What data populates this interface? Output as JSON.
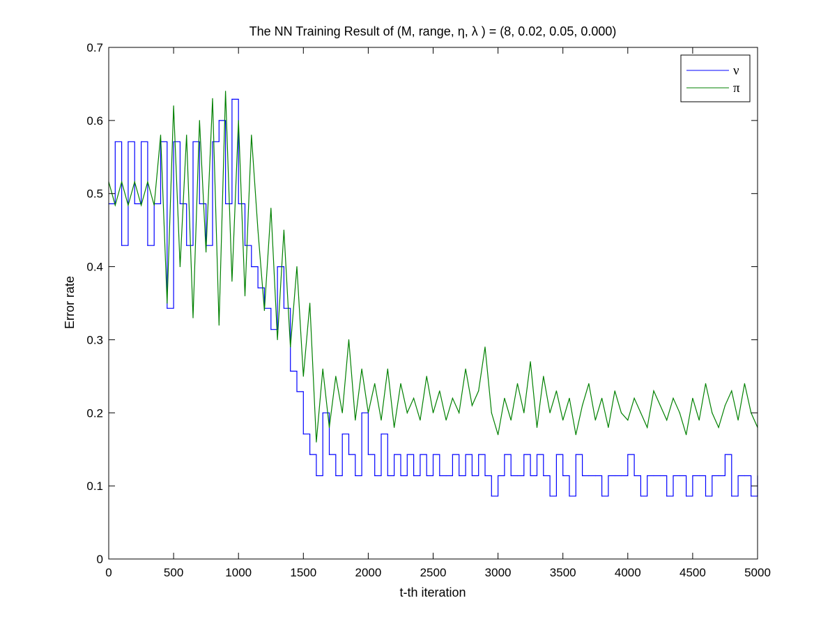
{
  "chart_data": {
    "type": "line",
    "title": "The NN Training Result of (M, range, η, λ ) = (8, 0.02, 0.05, 0.000)",
    "xlabel": "t-th iteration",
    "ylabel": "Error rate",
    "xlim": [
      0,
      5000
    ],
    "ylim": [
      0,
      0.7
    ],
    "xticks": [
      0,
      500,
      1000,
      1500,
      2000,
      2500,
      3000,
      3500,
      4000,
      4500,
      5000
    ],
    "yticks": [
      0,
      0.1,
      0.2,
      0.3,
      0.4,
      0.5,
      0.6,
      0.7
    ],
    "ytick_labels": [
      "0",
      "0.1",
      "0.2",
      "0.3",
      "0.4",
      "0.5",
      "0.6",
      "0.7"
    ],
    "grid": false,
    "legend_position": "top-right",
    "series": [
      {
        "name": "ν",
        "color": "#0000ff",
        "style": "step",
        "x": [
          0,
          50,
          100,
          150,
          200,
          250,
          300,
          350,
          400,
          450,
          500,
          550,
          600,
          650,
          700,
          750,
          800,
          850,
          900,
          950,
          1000,
          1050,
          1100,
          1150,
          1200,
          1250,
          1300,
          1350,
          1400,
          1450,
          1500,
          1550,
          1600,
          1650,
          1700,
          1750,
          1800,
          1850,
          1900,
          1950,
          2000,
          2050,
          2100,
          2150,
          2200,
          2250,
          2300,
          2350,
          2400,
          2450,
          2500,
          2550,
          2600,
          2650,
          2700,
          2750,
          2800,
          2850,
          2900,
          2950,
          3000,
          3050,
          3100,
          3150,
          3200,
          3250,
          3300,
          3350,
          3400,
          3450,
          3500,
          3550,
          3600,
          3650,
          3700,
          3750,
          3800,
          3850,
          3900,
          3950,
          4000,
          4050,
          4100,
          4150,
          4200,
          4250,
          4300,
          4350,
          4400,
          4450,
          4500,
          4550,
          4600,
          4650,
          4700,
          4750,
          4800,
          4850,
          4900,
          4950,
          5000
        ],
        "values": [
          0.486,
          0.571,
          0.429,
          0.571,
          0.486,
          0.571,
          0.429,
          0.486,
          0.571,
          0.343,
          0.571,
          0.486,
          0.429,
          0.571,
          0.486,
          0.429,
          0.571,
          0.6,
          0.486,
          0.629,
          0.486,
          0.429,
          0.4,
          0.371,
          0.343,
          0.314,
          0.4,
          0.343,
          0.257,
          0.229,
          0.171,
          0.143,
          0.114,
          0.2,
          0.143,
          0.114,
          0.171,
          0.143,
          0.114,
          0.2,
          0.143,
          0.114,
          0.171,
          0.114,
          0.143,
          0.114,
          0.143,
          0.114,
          0.143,
          0.114,
          0.143,
          0.114,
          0.114,
          0.143,
          0.114,
          0.143,
          0.114,
          0.143,
          0.114,
          0.086,
          0.114,
          0.143,
          0.114,
          0.114,
          0.143,
          0.114,
          0.143,
          0.114,
          0.086,
          0.143,
          0.114,
          0.086,
          0.143,
          0.114,
          0.114,
          0.114,
          0.086,
          0.114,
          0.114,
          0.114,
          0.143,
          0.114,
          0.086,
          0.114,
          0.114,
          0.114,
          0.086,
          0.114,
          0.114,
          0.086,
          0.114,
          0.114,
          0.086,
          0.114,
          0.114,
          0.143,
          0.086,
          0.114,
          0.114,
          0.086,
          0.114
        ]
      },
      {
        "name": "π",
        "color": "#008000",
        "style": "line",
        "x": [
          0,
          50,
          100,
          150,
          200,
          250,
          300,
          350,
          400,
          450,
          500,
          550,
          600,
          650,
          700,
          750,
          800,
          850,
          900,
          950,
          1000,
          1050,
          1100,
          1150,
          1200,
          1250,
          1300,
          1350,
          1400,
          1450,
          1500,
          1550,
          1600,
          1650,
          1700,
          1750,
          1800,
          1850,
          1900,
          1950,
          2000,
          2050,
          2100,
          2150,
          2200,
          2250,
          2300,
          2350,
          2400,
          2450,
          2500,
          2550,
          2600,
          2650,
          2700,
          2750,
          2800,
          2850,
          2900,
          2950,
          3000,
          3050,
          3100,
          3150,
          3200,
          3250,
          3300,
          3350,
          3400,
          3450,
          3500,
          3550,
          3600,
          3650,
          3700,
          3750,
          3800,
          3850,
          3900,
          3950,
          4000,
          4050,
          4100,
          4150,
          4200,
          4250,
          4300,
          4350,
          4400,
          4450,
          4500,
          4550,
          4600,
          4650,
          4700,
          4750,
          4800,
          4850,
          4900,
          4950,
          5000
        ],
        "values": [
          0.516,
          0.484,
          0.516,
          0.484,
          0.516,
          0.484,
          0.516,
          0.484,
          0.58,
          0.35,
          0.62,
          0.4,
          0.58,
          0.33,
          0.6,
          0.42,
          0.63,
          0.32,
          0.64,
          0.38,
          0.6,
          0.36,
          0.58,
          0.45,
          0.34,
          0.48,
          0.3,
          0.45,
          0.29,
          0.4,
          0.25,
          0.35,
          0.16,
          0.26,
          0.18,
          0.25,
          0.2,
          0.3,
          0.19,
          0.26,
          0.2,
          0.24,
          0.19,
          0.26,
          0.18,
          0.24,
          0.2,
          0.22,
          0.19,
          0.25,
          0.2,
          0.23,
          0.19,
          0.22,
          0.2,
          0.26,
          0.21,
          0.23,
          0.29,
          0.2,
          0.17,
          0.22,
          0.19,
          0.24,
          0.2,
          0.27,
          0.18,
          0.25,
          0.2,
          0.23,
          0.19,
          0.22,
          0.17,
          0.21,
          0.24,
          0.19,
          0.22,
          0.18,
          0.23,
          0.2,
          0.19,
          0.22,
          0.2,
          0.18,
          0.23,
          0.21,
          0.19,
          0.22,
          0.2,
          0.17,
          0.22,
          0.19,
          0.24,
          0.2,
          0.18,
          0.21,
          0.23,
          0.19,
          0.24,
          0.2,
          0.18
        ]
      }
    ]
  }
}
